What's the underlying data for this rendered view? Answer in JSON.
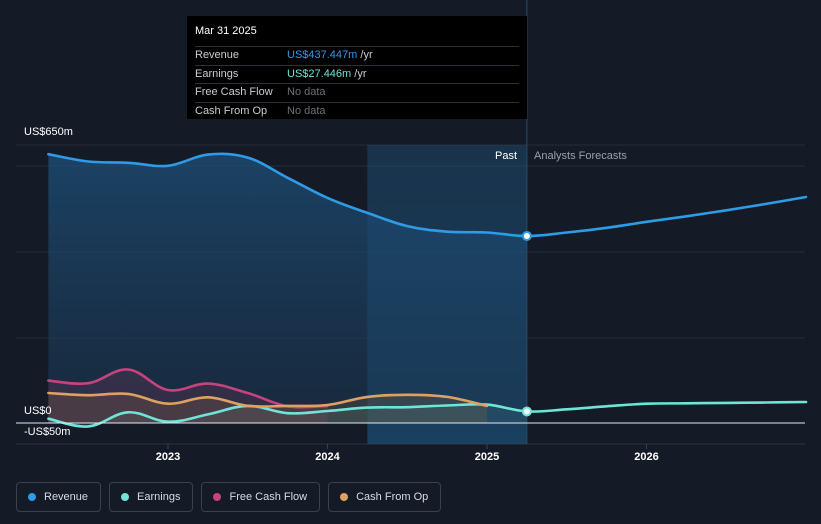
{
  "tooltip": {
    "date": "Mar 31 2025",
    "rows": [
      {
        "label": "Revenue",
        "value": "US$437.447m",
        "unit": " /yr",
        "color": "#2f9ae6"
      },
      {
        "label": "Earnings",
        "value": "US$27.446m",
        "unit": " /yr",
        "color": "#6fe5d6"
      },
      {
        "label": "Free Cash Flow",
        "value": "No data",
        "unit": "",
        "color": "#6b7079"
      },
      {
        "label": "Cash From Op",
        "value": "No data",
        "unit": "",
        "color": "#6b7079"
      }
    ]
  },
  "regions": {
    "past": "Past",
    "forecast": "Analysts Forecasts"
  },
  "chart_data": {
    "type": "line",
    "title": "",
    "xlabel": "",
    "ylabel": "",
    "y_tick_labels": {
      "top": "US$650m",
      "zero": "US$0",
      "bottom": "-US$50m"
    },
    "ylim": [
      -50,
      650
    ],
    "x_ticks": [
      {
        "label": "2023",
        "value": 2023.0
      },
      {
        "label": "2024",
        "value": 2024.0
      },
      {
        "label": "2025",
        "value": 2025.0
      },
      {
        "label": "2026",
        "value": 2026.0
      }
    ],
    "past_end": 2025.25,
    "shade_start": 2024.25,
    "series": [
      {
        "name": "Revenue",
        "color": "#2f9ae6",
        "x": [
          2022.25,
          2022.5,
          2022.75,
          2023.0,
          2023.25,
          2023.5,
          2023.75,
          2024.0,
          2024.25,
          2024.5,
          2024.75,
          2025.0,
          2025.25,
          2025.5,
          2025.75,
          2026.0,
          2026.25,
          2026.5,
          2026.75,
          2027.0
        ],
        "values": [
          628,
          611,
          608,
          601,
          627,
          620,
          573,
          526,
          491,
          460,
          447,
          445,
          437,
          445,
          456,
          470,
          483,
          497,
          512,
          528
        ]
      },
      {
        "name": "Earnings",
        "color": "#6fe5d6",
        "x": [
          2022.25,
          2022.5,
          2022.75,
          2023.0,
          2023.25,
          2023.5,
          2023.75,
          2024.0,
          2024.25,
          2024.5,
          2024.75,
          2025.0,
          2025.25,
          2025.5,
          2025.75,
          2026.0,
          2026.25,
          2026.5,
          2026.75,
          2027.0
        ],
        "values": [
          10,
          -8,
          25,
          3,
          20,
          40,
          23,
          28,
          36,
          37,
          41,
          43,
          27,
          32,
          39,
          45,
          46,
          47,
          48,
          49
        ]
      },
      {
        "name": "Free Cash Flow",
        "color": "#c6437f",
        "x": [
          2022.25,
          2022.5,
          2022.75,
          2023.0,
          2023.25,
          2023.5,
          2023.75,
          2024.0
        ],
        "values": [
          99,
          93,
          125,
          77,
          92,
          70,
          39,
          40
        ]
      },
      {
        "name": "Cash From Op",
        "color": "#e0a160",
        "x": [
          2022.25,
          2022.5,
          2022.75,
          2023.0,
          2023.25,
          2023.5,
          2023.75,
          2024.0,
          2024.25,
          2024.5,
          2024.75,
          2025.0
        ],
        "values": [
          70,
          65,
          68,
          45,
          60,
          40,
          40,
          42,
          61,
          66,
          61,
          40
        ]
      }
    ],
    "highlight_point": {
      "x": 2025.25,
      "series": [
        "Revenue",
        "Earnings"
      ]
    }
  },
  "legend": [
    {
      "label": "Revenue",
      "color": "#2f9ae6"
    },
    {
      "label": "Earnings",
      "color": "#6fe5d6"
    },
    {
      "label": "Free Cash Flow",
      "color": "#c6437f"
    },
    {
      "label": "Cash From Op",
      "color": "#e0a160"
    }
  ]
}
